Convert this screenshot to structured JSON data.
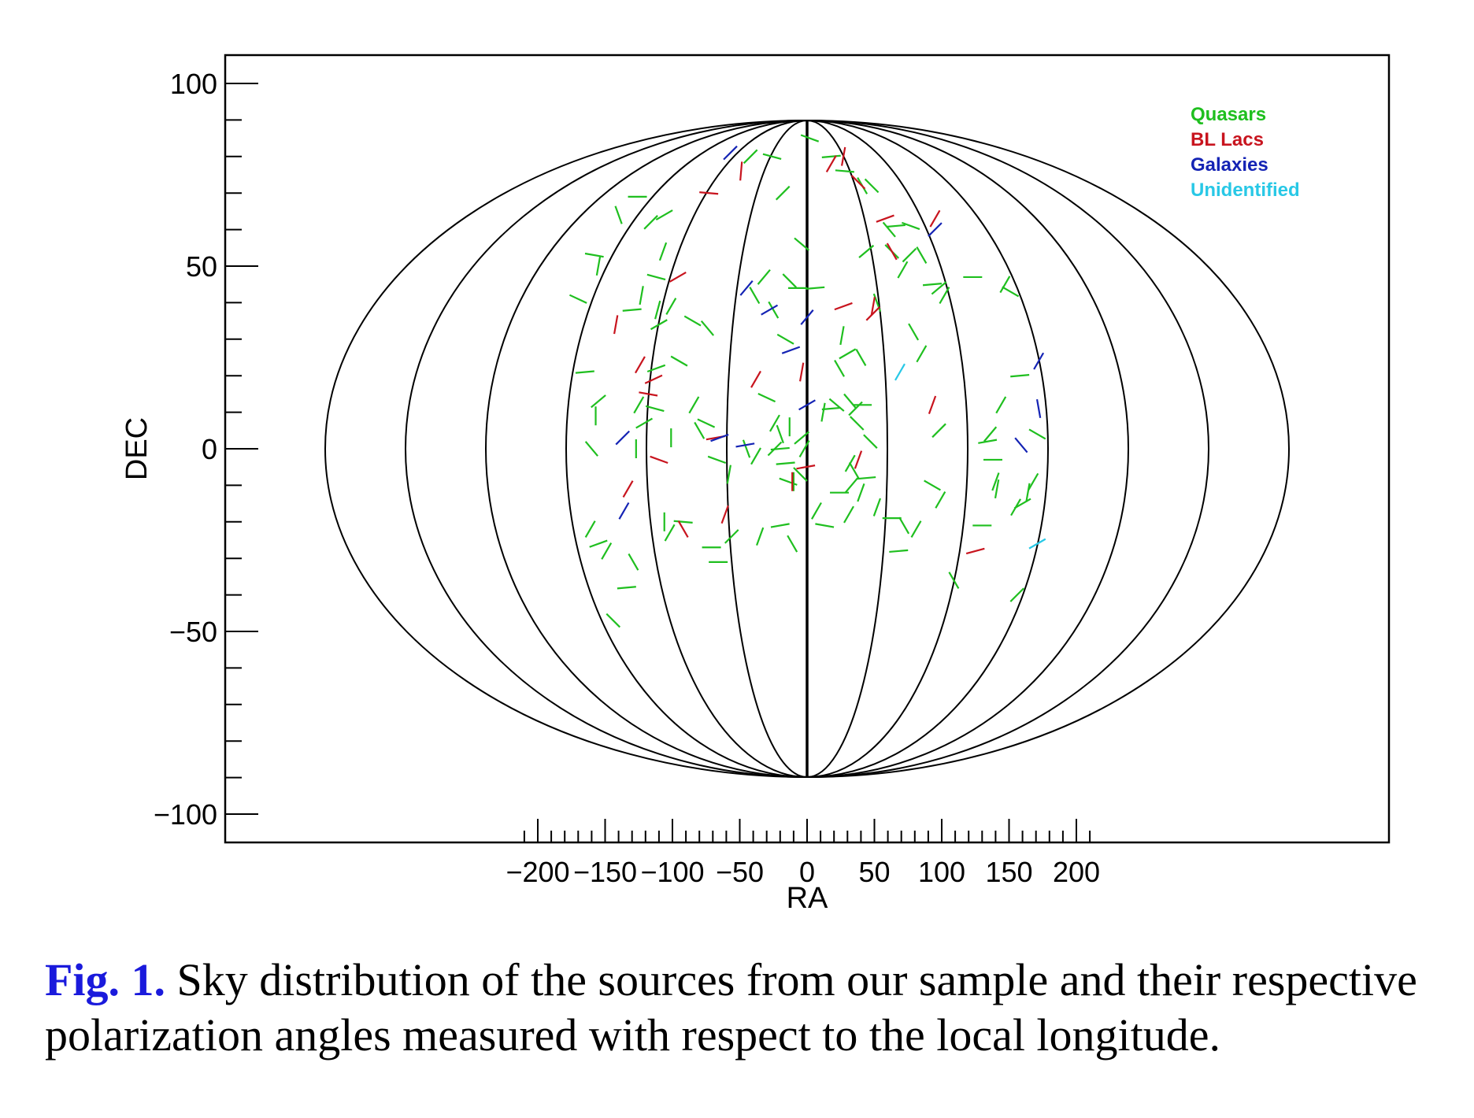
{
  "chart_data": {
    "type": "scatter",
    "projection": "Hammer-Aitoff (RA/DEC sky map)",
    "xlabel": "RA",
    "ylabel": "DEC",
    "xlim": [
      -215,
      215
    ],
    "ylim": [
      -108,
      108
    ],
    "xticks": [
      -200,
      -150,
      -100,
      -50,
      0,
      50,
      100,
      150,
      200
    ],
    "xtick_labels": [
      "−200",
      "−150",
      "−100",
      "−50",
      "0",
      "50",
      "100",
      "150",
      "200"
    ],
    "yticks": [
      100,
      50,
      0,
      -50,
      -100
    ],
    "ytick_labels": [
      "100",
      "50",
      "0",
      "−50",
      "−100"
    ],
    "grid": false,
    "grid_meridians_ra": [
      -180,
      -150,
      -120,
      -90,
      -60,
      -30,
      0,
      30,
      60,
      90,
      120,
      150,
      180
    ],
    "legend_position": "top-right",
    "legend": [
      {
        "label": "Quasars",
        "color": "#1fbf1f"
      },
      {
        "label": "BL Lacs",
        "color": "#c8141e"
      },
      {
        "label": "Galaxies",
        "color": "#1423b4"
      },
      {
        "label": "Unidentified",
        "color": "#28c8e6"
      }
    ],
    "series": [
      {
        "name": "Quasars",
        "color": "#1fbf1f",
        "points": [
          [
            -42,
            80,
            45
          ],
          [
            -26,
            80,
            -15
          ],
          [
            -106,
            64,
            30
          ],
          [
            -116,
            62,
            45
          ],
          [
            -158,
            53,
            -10
          ],
          [
            -155,
            50,
            80
          ],
          [
            -170,
            41,
            -25
          ],
          [
            -165,
            21,
            5
          ],
          [
            -130,
            38,
            5
          ],
          [
            -123,
            42,
            80
          ],
          [
            -110,
            34,
            30
          ],
          [
            -101,
            39,
            60
          ],
          [
            -112,
            22,
            20
          ],
          [
            -95,
            24,
            -30
          ],
          [
            -112,
            47,
            -15
          ],
          [
            -111,
            38,
            75
          ],
          [
            -85,
            35,
            -30
          ],
          [
            -74,
            33,
            -50
          ],
          [
            -39,
            42,
            -60
          ],
          [
            -25,
            38,
            -60
          ],
          [
            -16,
            30,
            -30
          ],
          [
            -32,
            47,
            50
          ],
          [
            -13,
            46,
            -45
          ],
          [
            -4,
            56,
            -40
          ],
          [
            -7,
            44,
            0
          ],
          [
            6,
            44,
            5
          ],
          [
            -18,
            70,
            45
          ],
          [
            2,
            85,
            -20
          ],
          [
            -157,
            9,
            90
          ],
          [
            -125,
            12,
            60
          ],
          [
            -113,
            11,
            -15
          ],
          [
            -101,
            3,
            90
          ],
          [
            -160,
            0,
            -50
          ],
          [
            -84,
            12,
            60
          ],
          [
            -80,
            5,
            -60
          ],
          [
            -75,
            7,
            -25
          ],
          [
            -67,
            -3,
            -20
          ],
          [
            -58,
            -7,
            80
          ],
          [
            -45,
            0,
            -70
          ],
          [
            -38,
            -2,
            60
          ],
          [
            -30,
            14,
            -25
          ],
          [
            -24,
            7,
            60
          ],
          [
            -24,
            0,
            45
          ],
          [
            -20,
            4,
            -70
          ],
          [
            -13,
            6,
            90
          ],
          [
            -20,
            0,
            5
          ],
          [
            -16,
            -4,
            5
          ],
          [
            -14,
            -9,
            -20
          ],
          [
            -10,
            -9,
            90
          ],
          [
            -5,
            -7,
            -45
          ],
          [
            -4,
            3,
            40
          ],
          [
            -2,
            0,
            60
          ],
          [
            12,
            10,
            80
          ],
          [
            18,
            11,
            5
          ],
          [
            22,
            12,
            -40
          ],
          [
            32,
            13,
            -50
          ],
          [
            36,
            11,
            45
          ],
          [
            37,
            7,
            -45
          ],
          [
            41,
            12,
            0
          ],
          [
            24,
            22,
            -60
          ],
          [
            30,
            26,
            30
          ],
          [
            40,
            25,
            -60
          ],
          [
            26,
            31,
            80
          ],
          [
            47,
            2,
            -45
          ],
          [
            44,
            -8,
            5
          ],
          [
            33,
            -10,
            50
          ],
          [
            24,
            -12,
            0
          ],
          [
            13,
            -21,
            -10
          ],
          [
            7,
            -17,
            60
          ],
          [
            31,
            -18,
            60
          ],
          [
            40,
            -12,
            70
          ],
          [
            35,
            -6,
            -60
          ],
          [
            32,
            -4,
            60
          ],
          [
            52,
            -16,
            70
          ],
          [
            63,
            -19,
            0
          ],
          [
            72,
            -21,
            -60
          ],
          [
            68,
            -28,
            5
          ],
          [
            81,
            -22,
            60
          ],
          [
            93,
            -10,
            -30
          ],
          [
            99,
            -14,
            60
          ],
          [
            98,
            5,
            45
          ],
          [
            109,
            -36,
            -60
          ],
          [
            130,
            -21,
            0
          ],
          [
            134,
            2,
            10
          ],
          [
            136,
            4,
            50
          ],
          [
            138,
            -3,
            0
          ],
          [
            140,
            -9,
            70
          ],
          [
            141,
            -11,
            80
          ],
          [
            144,
            12,
            60
          ],
          [
            155,
            -16,
            60
          ],
          [
            156,
            -40,
            45
          ],
          [
            160,
            -15,
            30
          ],
          [
            164,
            -12,
            80
          ],
          [
            168,
            -9,
            60
          ],
          [
            171,
            4,
            -30
          ],
          [
            158,
            20,
            5
          ],
          [
            151,
            43,
            -30
          ],
          [
            147,
            45,
            60
          ],
          [
            123,
            47,
            0
          ],
          [
            102,
            42,
            60
          ],
          [
            98,
            44,
            40
          ],
          [
            93,
            45,
            5
          ],
          [
            85,
            53,
            -60
          ],
          [
            71,
            49,
            60
          ],
          [
            63,
            54,
            -45
          ],
          [
            66,
            61,
            5
          ],
          [
            61,
            60,
            -50
          ],
          [
            77,
            61,
            -20
          ],
          [
            76,
            53,
            45
          ],
          [
            85,
            26,
            60
          ],
          [
            79,
            32,
            -60
          ],
          [
            52,
            40,
            -70
          ],
          [
            44,
            54,
            40
          ],
          [
            48,
            72,
            -45
          ],
          [
            41,
            72,
            -60
          ],
          [
            28,
            76,
            -5
          ],
          [
            18,
            80,
            5
          ],
          [
            -140,
            64,
            -70
          ],
          [
            -126,
            69,
            0
          ],
          [
            -107,
            54,
            70
          ],
          [
            -155,
            13,
            40
          ],
          [
            -161,
            -22,
            60
          ],
          [
            -155,
            -26,
            20
          ],
          [
            -149,
            -28,
            60
          ],
          [
            -134,
            -38,
            5
          ],
          [
            -129,
            -31,
            -60
          ],
          [
            -144,
            -47,
            -45
          ],
          [
            -106,
            -20,
            90
          ],
          [
            -102,
            -23,
            60
          ],
          [
            -92,
            -20,
            -5
          ],
          [
            -71,
            -27,
            0
          ],
          [
            -56,
            -24,
            45
          ],
          [
            -66,
            -31,
            0
          ],
          [
            -35,
            -24,
            70
          ],
          [
            -20,
            -21,
            10
          ],
          [
            -11,
            -26,
            -60
          ],
          [
            -121,
            7,
            30
          ],
          [
            -127,
            0,
            90
          ]
        ]
      },
      {
        "name": "BL Lacs",
        "color": "#c8141e",
        "points": [
          [
            -73,
            70,
            -5
          ],
          [
            -49,
            76,
            85
          ],
          [
            -96,
            47,
            30
          ],
          [
            -142,
            34,
            80
          ],
          [
            -124,
            23,
            60
          ],
          [
            -114,
            19,
            25
          ],
          [
            -118,
            15,
            -10
          ],
          [
            -110,
            -3,
            -20
          ],
          [
            -38,
            19,
            60
          ],
          [
            -4,
            21,
            80
          ],
          [
            -1,
            -5,
            10
          ],
          [
            -11,
            -9,
            90
          ],
          [
            -133,
            -11,
            60
          ],
          [
            -92,
            -22,
            -60
          ],
          [
            -61,
            -18,
            70
          ],
          [
            -68,
            3,
            10
          ],
          [
            27,
            39,
            20
          ],
          [
            49,
            37,
            45
          ],
          [
            49,
            39,
            80
          ],
          [
            58,
            63,
            20
          ],
          [
            63,
            54,
            -60
          ],
          [
            27,
            80,
            80
          ],
          [
            18,
            78,
            60
          ],
          [
            38,
            73,
            -45
          ],
          [
            93,
            12,
            70
          ],
          [
            95,
            63,
            60
          ],
          [
            125,
            -28,
            15
          ],
          [
            38,
            -3,
            70
          ]
        ]
      },
      {
        "name": "Galaxies",
        "color": "#1423b4",
        "points": [
          [
            -57,
            81,
            45
          ],
          [
            -45,
            44,
            50
          ],
          [
            -28,
            38,
            30
          ],
          [
            -12,
            27,
            20
          ],
          [
            0,
            36,
            50
          ],
          [
            0,
            12,
            30
          ],
          [
            -65,
            3,
            20
          ],
          [
            -46,
            1,
            10
          ],
          [
            -137,
            3,
            45
          ],
          [
            -136,
            -17,
            60
          ],
          [
            95,
            60,
            45
          ],
          [
            172,
            24,
            60
          ],
          [
            172,
            11,
            -80
          ],
          [
            159,
            1,
            -50
          ]
        ]
      },
      {
        "name": "Unidentified",
        "color": "#28c8e6",
        "points": [
          [
            69,
            21,
            60
          ],
          [
            171,
            -26,
            30
          ]
        ]
      }
    ]
  },
  "caption": {
    "label": "Fig. 1.",
    "text": " Sky distribution of the sources from our sample and their respective polarization angles measured with respect to the local longitude."
  }
}
